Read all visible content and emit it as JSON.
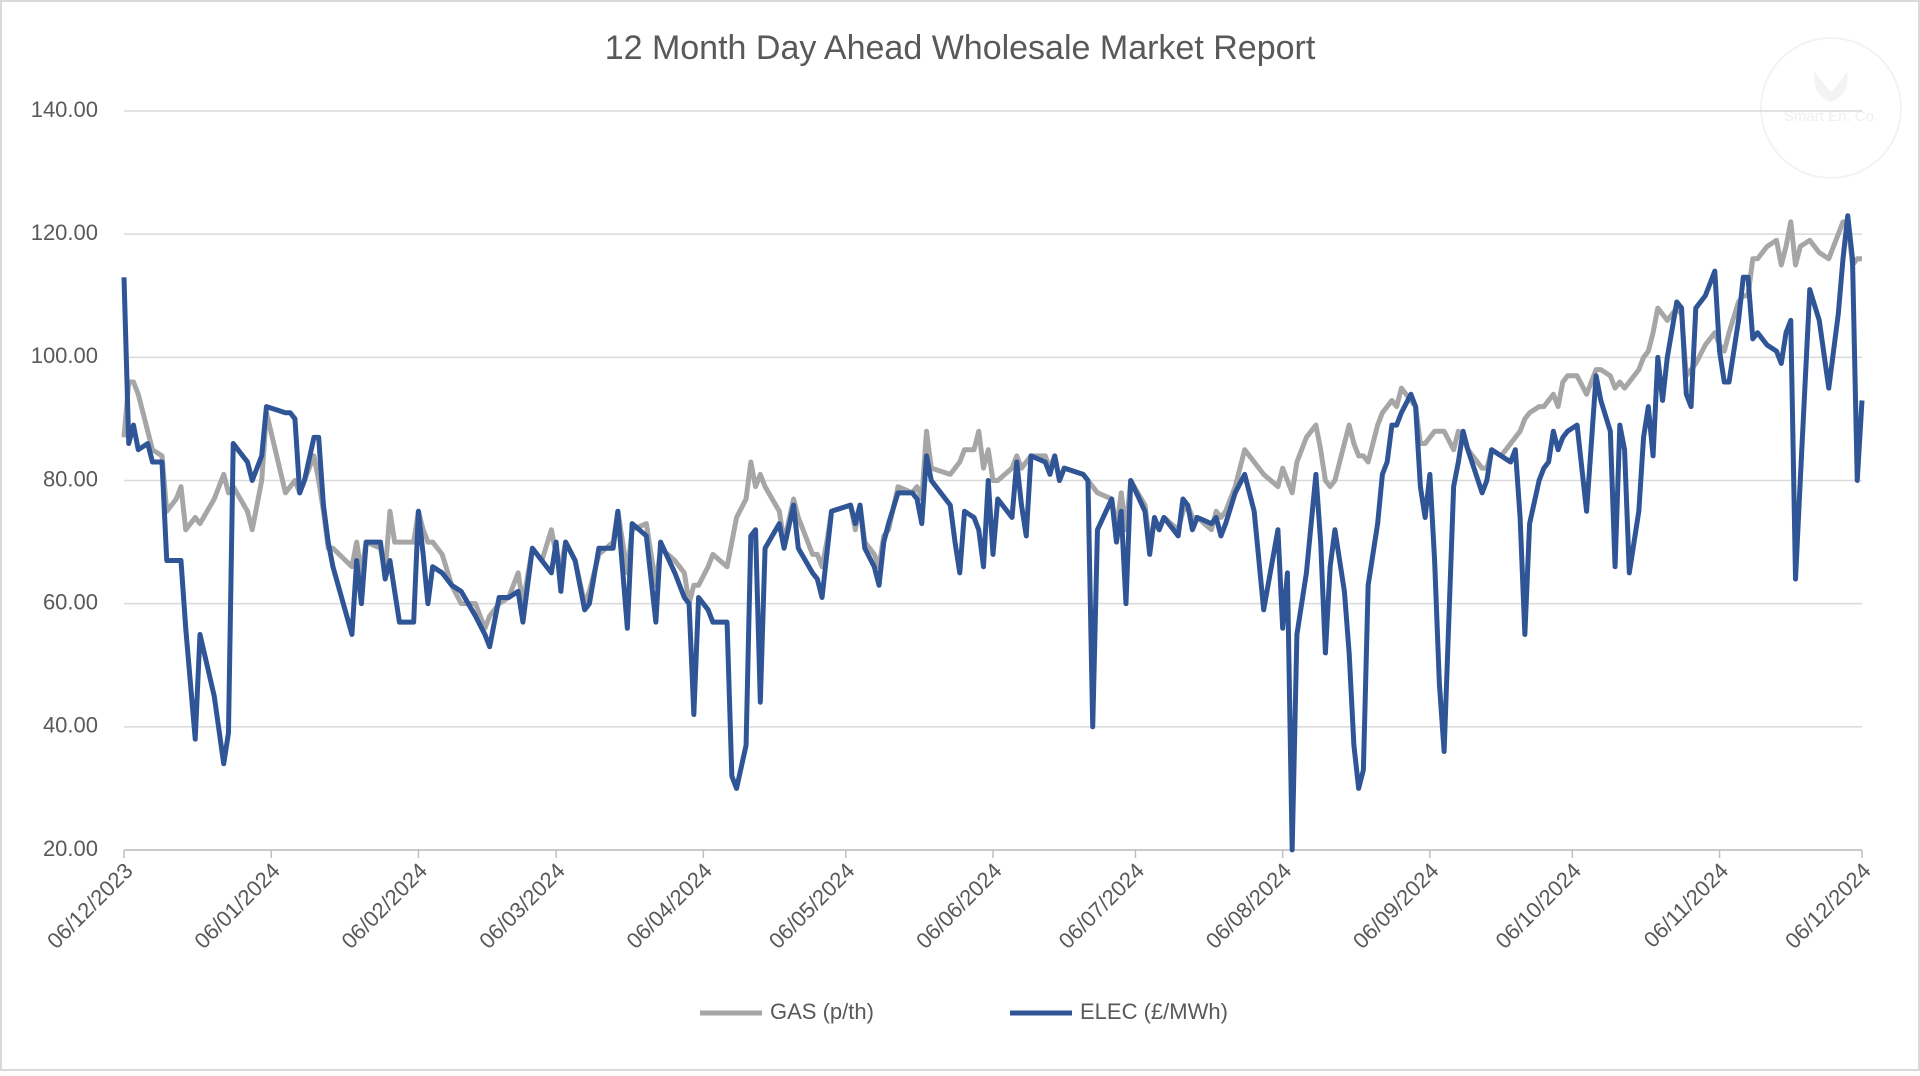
{
  "chart_data": {
    "type": "line",
    "title": "12 Month Day Ahead Wholesale Market Report",
    "watermark": "Smart En. Co.",
    "x": [
      "2023-12-06",
      "2023-12-07",
      "2023-12-08",
      "2023-12-09",
      "2023-12-11",
      "2023-12-12",
      "2023-12-14",
      "2023-12-15",
      "2023-12-17",
      "2023-12-18",
      "2023-12-19",
      "2023-12-21",
      "2023-12-22",
      "2023-12-25",
      "2023-12-27",
      "2023-12-28",
      "2023-12-29",
      "2024-01-01",
      "2024-01-02",
      "2024-01-04",
      "2024-01-05",
      "2024-01-09",
      "2024-01-10",
      "2024-01-11",
      "2024-01-12",
      "2024-01-13",
      "2024-01-15",
      "2024-01-16",
      "2024-01-17",
      "2024-01-18",
      "2024-01-19",
      "2024-01-23",
      "2024-01-24",
      "2024-01-25",
      "2024-01-26",
      "2024-01-29",
      "2024-01-30",
      "2024-01-31",
      "2024-02-01",
      "2024-02-02",
      "2024-02-05",
      "2024-02-06",
      "2024-02-07",
      "2024-02-08",
      "2024-02-09",
      "2024-02-11",
      "2024-02-13",
      "2024-02-15",
      "2024-02-18",
      "2024-02-20",
      "2024-02-21",
      "2024-02-23",
      "2024-02-25",
      "2024-02-27",
      "2024-02-28",
      "2024-03-01",
      "2024-03-03",
      "2024-03-05",
      "2024-03-06",
      "2024-03-07",
      "2024-03-08",
      "2024-03-10",
      "2024-03-12",
      "2024-03-13",
      "2024-03-15",
      "2024-03-18",
      "2024-03-19",
      "2024-03-21",
      "2024-03-22",
      "2024-03-25",
      "2024-03-27",
      "2024-03-28",
      "2024-03-31",
      "2024-04-02",
      "2024-04-03",
      "2024-04-04",
      "2024-04-05",
      "2024-04-07",
      "2024-04-08",
      "2024-04-11",
      "2024-04-12",
      "2024-04-13",
      "2024-04-15",
      "2024-04-16",
      "2024-04-17",
      "2024-04-18",
      "2024-04-19",
      "2024-04-22",
      "2024-04-23",
      "2024-04-25",
      "2024-04-26",
      "2024-04-29",
      "2024-04-30",
      "2024-05-01",
      "2024-05-02",
      "2024-05-03",
      "2024-05-07",
      "2024-05-08",
      "2024-05-09",
      "2024-05-10",
      "2024-05-12",
      "2024-05-13",
      "2024-05-14",
      "2024-05-15",
      "2024-05-17",
      "2024-05-20",
      "2024-05-21",
      "2024-05-22",
      "2024-05-23",
      "2024-05-24",
      "2024-05-28",
      "2024-05-29",
      "2024-05-30",
      "2024-05-31",
      "2024-06-02",
      "2024-06-03",
      "2024-06-04",
      "2024-06-05",
      "2024-06-06",
      "2024-06-07",
      "2024-06-10",
      "2024-06-11",
      "2024-06-12",
      "2024-06-13",
      "2024-06-14",
      "2024-06-17",
      "2024-06-18",
      "2024-06-19",
      "2024-06-20",
      "2024-06-21",
      "2024-06-25",
      "2024-06-26",
      "2024-06-27",
      "2024-06-28",
      "2024-07-01",
      "2024-07-02",
      "2024-07-03",
      "2024-07-04",
      "2024-07-05",
      "2024-07-08",
      "2024-07-09",
      "2024-07-10",
      "2024-07-11",
      "2024-07-12",
      "2024-07-15",
      "2024-07-16",
      "2024-07-17",
      "2024-07-18",
      "2024-07-19",
      "2024-07-22",
      "2024-07-23",
      "2024-07-24",
      "2024-07-25",
      "2024-07-27",
      "2024-07-29",
      "2024-07-31",
      "2024-08-02",
      "2024-08-05",
      "2024-08-06",
      "2024-08-07",
      "2024-08-08",
      "2024-08-09",
      "2024-08-11",
      "2024-08-13",
      "2024-08-14",
      "2024-08-15",
      "2024-08-16",
      "2024-08-17",
      "2024-08-19",
      "2024-08-20",
      "2024-08-21",
      "2024-08-22",
      "2024-08-23",
      "2024-08-24",
      "2024-08-26",
      "2024-08-27",
      "2024-08-28",
      "2024-08-29",
      "2024-08-30",
      "2024-08-31",
      "2024-09-02",
      "2024-09-03",
      "2024-09-04",
      "2024-09-05",
      "2024-09-06",
      "2024-09-07",
      "2024-09-08",
      "2024-09-09",
      "2024-09-11",
      "2024-09-12",
      "2024-09-13",
      "2024-09-14",
      "2024-09-17",
      "2024-09-18",
      "2024-09-19",
      "2024-09-21",
      "2024-09-23",
      "2024-09-24",
      "2024-09-25",
      "2024-09-26",
      "2024-09-27",
      "2024-09-29",
      "2024-09-30",
      "2024-10-01",
      "2024-10-02",
      "2024-10-03",
      "2024-10-04",
      "2024-10-05",
      "2024-10-07",
      "2024-10-09",
      "2024-10-11",
      "2024-10-12",
      "2024-10-14",
      "2024-10-15",
      "2024-10-16",
      "2024-10-17",
      "2024-10-18",
      "2024-10-20",
      "2024-10-21",
      "2024-10-22",
      "2024-10-23",
      "2024-10-24",
      "2024-10-25",
      "2024-10-26",
      "2024-10-28",
      "2024-10-29",
      "2024-10-30",
      "2024-10-31",
      "2024-11-01",
      "2024-11-03",
      "2024-11-05",
      "2024-11-06",
      "2024-11-07",
      "2024-11-08",
      "2024-11-10",
      "2024-11-11",
      "2024-11-12",
      "2024-11-13",
      "2024-11-14",
      "2024-11-16",
      "2024-11-18",
      "2024-11-19",
      "2024-11-20",
      "2024-11-21",
      "2024-11-22",
      "2024-11-23",
      "2024-11-25",
      "2024-11-27",
      "2024-11-29",
      "2024-12-01",
      "2024-12-02",
      "2024-12-03",
      "2024-12-04",
      "2024-12-05",
      "2024-12-06"
    ],
    "series": [
      {
        "name": "GAS (p/th)",
        "color": "#a6a6a6",
        "values": [
          87,
          96,
          96,
          94,
          88,
          85,
          84,
          75,
          77,
          79,
          72,
          74,
          73,
          77,
          81,
          78,
          79,
          75,
          72,
          80,
          91,
          78,
          79,
          80,
          78,
          80,
          84,
          80,
          75,
          69,
          69,
          66,
          70,
          65,
          70,
          69,
          65,
          75,
          70,
          70,
          70,
          75,
          72,
          70,
          70,
          68,
          63,
          60,
          60,
          56,
          58,
          60,
          61,
          65,
          60,
          69,
          67,
          72,
          68,
          66,
          70,
          67,
          60,
          62,
          68,
          70,
          75,
          65,
          72,
          73,
          63,
          69,
          67,
          65,
          60,
          63,
          63,
          66,
          68,
          66,
          70,
          74,
          77,
          83,
          79,
          81,
          79,
          75,
          70,
          77,
          74,
          68,
          68,
          66,
          70,
          75,
          76,
          72,
          76,
          70,
          68,
          66,
          71,
          72,
          79,
          78,
          79,
          77,
          88,
          82,
          81,
          82,
          83,
          85,
          85,
          88,
          82,
          85,
          80,
          80,
          82,
          84,
          82,
          83,
          84,
          84,
          82,
          84,
          80,
          82,
          81,
          80,
          79,
          78,
          77,
          72,
          78,
          72,
          80,
          76,
          70,
          73,
          72,
          74,
          72,
          75,
          76,
          74,
          74,
          72,
          75,
          74,
          75,
          79,
          85,
          83,
          81,
          79,
          82,
          80,
          78,
          83,
          87,
          89,
          85,
          80,
          79,
          80,
          86,
          89,
          86,
          84,
          84,
          83,
          89,
          91,
          92,
          93,
          92,
          95,
          93,
          92,
          86,
          86,
          87,
          88,
          88,
          88,
          85,
          88,
          87,
          85,
          82,
          82,
          85,
          84,
          86,
          87,
          88,
          90,
          91,
          92,
          92,
          93,
          94,
          92,
          96,
          97,
          97,
          94,
          98,
          98,
          97,
          95,
          96,
          95,
          96,
          98,
          100,
          101,
          104,
          108,
          107,
          106,
          108,
          107,
          97,
          98,
          99,
          102,
          104,
          102,
          101,
          104,
          109,
          110,
          110,
          116,
          116,
          118,
          119,
          115,
          118,
          122,
          115,
          118,
          119,
          117,
          116,
          120,
          122,
          122,
          115,
          116,
          116
        ]
      },
      {
        "name": "ELEC (£/MWh)",
        "color": "#2f5597",
        "values": [
          113,
          86,
          89,
          85,
          86,
          83,
          83,
          67,
          67,
          67,
          56,
          38,
          55,
          45,
          34,
          39,
          86,
          83,
          80,
          84,
          92,
          91,
          91,
          90,
          78,
          80,
          87,
          87,
          76,
          70,
          66,
          55,
          67,
          60,
          70,
          70,
          64,
          67,
          62,
          57,
          57,
          75,
          68,
          60,
          66,
          65,
          63,
          62,
          58,
          55,
          53,
          61,
          61,
          62,
          57,
          69,
          67,
          65,
          70,
          62,
          70,
          67,
          59,
          60,
          69,
          69,
          75,
          56,
          73,
          71,
          57,
          70,
          65,
          61,
          60,
          42,
          61,
          59,
          57,
          57,
          32,
          30,
          37,
          71,
          72,
          44,
          69,
          73,
          69,
          76,
          69,
          65,
          64,
          61,
          68,
          75,
          76,
          73,
          76,
          69,
          66,
          63,
          70,
          73,
          78,
          78,
          77,
          73,
          84,
          80,
          76,
          70,
          65,
          75,
          74,
          72,
          66,
          80,
          68,
          77,
          74,
          83,
          76,
          71,
          84,
          83,
          81,
          84,
          80,
          82,
          81,
          80,
          40,
          72,
          77,
          70,
          75,
          60,
          80,
          75,
          68,
          74,
          72,
          74,
          71,
          77,
          76,
          72,
          74,
          73,
          74,
          71,
          73,
          78,
          81,
          75,
          59,
          72,
          56,
          65,
          20,
          55,
          65,
          81,
          70,
          52,
          66,
          72,
          62,
          52,
          37,
          30,
          33,
          63,
          73,
          81,
          83,
          89,
          89,
          91,
          94,
          92,
          79,
          74,
          81,
          67,
          47,
          36,
          79,
          83,
          88,
          85,
          78,
          80,
          85,
          84,
          83,
          85,
          74,
          55,
          73,
          80,
          82,
          83,
          88,
          85,
          87,
          88,
          89,
          75,
          97,
          93,
          88,
          66,
          89,
          85,
          65,
          75,
          87,
          92,
          84,
          100,
          93,
          100,
          109,
          108,
          94,
          92,
          108,
          110,
          114,
          101,
          96,
          96,
          106,
          113,
          113,
          103,
          104,
          102,
          101,
          99,
          104,
          106,
          64,
          80,
          111,
          106,
          95,
          107,
          116,
          123,
          116,
          80,
          93
        ]
      }
    ],
    "xlim": [
      "2023-12-06",
      "2024-12-06"
    ],
    "xticks": [
      {
        "value": "2023-12-06",
        "label": "06/12/2023"
      },
      {
        "value": "2024-01-06",
        "label": "06/01/2024"
      },
      {
        "value": "2024-02-06",
        "label": "06/02/2024"
      },
      {
        "value": "2024-03-06",
        "label": "06/03/2024"
      },
      {
        "value": "2024-04-06",
        "label": "06/04/2024"
      },
      {
        "value": "2024-05-06",
        "label": "06/05/2024"
      },
      {
        "value": "2024-06-06",
        "label": "06/06/2024"
      },
      {
        "value": "2024-07-06",
        "label": "06/07/2024"
      },
      {
        "value": "2024-08-06",
        "label": "06/08/2024"
      },
      {
        "value": "2024-09-06",
        "label": "06/09/2024"
      },
      {
        "value": "2024-10-06",
        "label": "06/10/2024"
      },
      {
        "value": "2024-11-06",
        "label": "06/11/2024"
      },
      {
        "value": "2024-12-06",
        "label": "06/12/2024"
      }
    ],
    "ylim": [
      20,
      140
    ],
    "yticks": [
      {
        "value": 20,
        "label": "20.00"
      },
      {
        "value": 40,
        "label": "40.00"
      },
      {
        "value": 60,
        "label": "60.00"
      },
      {
        "value": 80,
        "label": "80.00"
      },
      {
        "value": 100,
        "label": "100.00"
      },
      {
        "value": 120,
        "label": "120.00"
      },
      {
        "value": 140,
        "label": "140.00"
      }
    ],
    "grid": true,
    "legend": "bottom"
  }
}
